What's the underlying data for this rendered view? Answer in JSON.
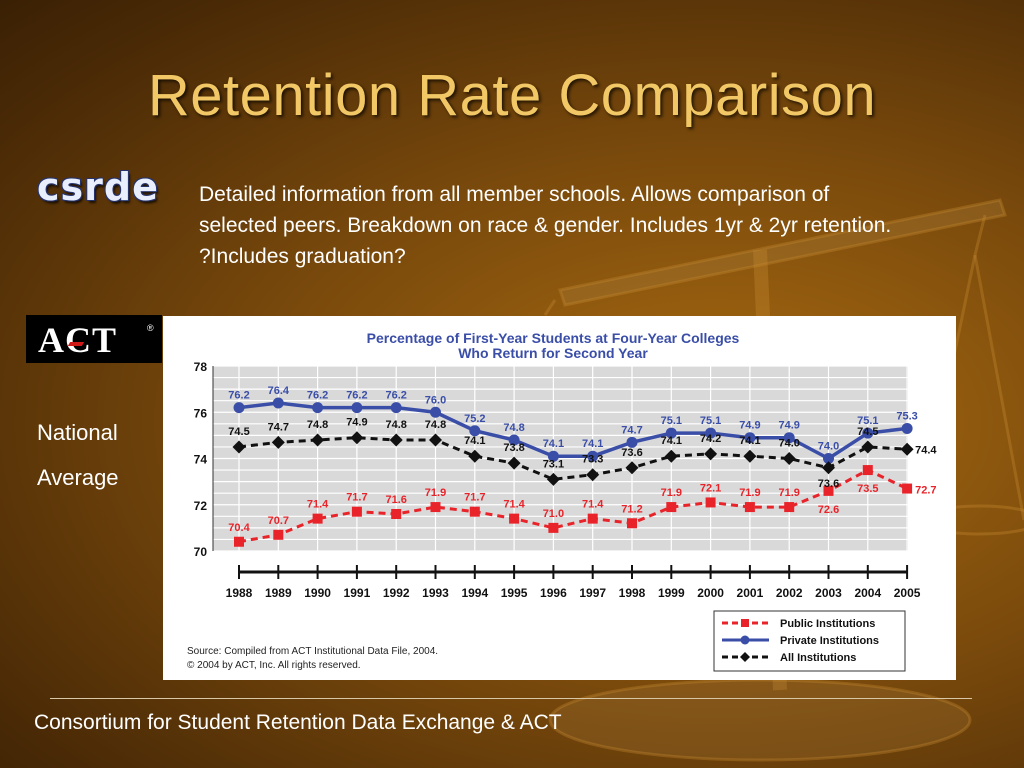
{
  "slide": {
    "title": "Retention Rate Comparison",
    "csrde_logo": "csrde",
    "description": "Detailed information from all member schools.  Allows comparison of selected peers.  Breakdown on race & gender.  Includes 1yr & 2yr retention.  ?Includes graduation?",
    "act_logo": "ACT",
    "act_registered": "®",
    "national": "National",
    "average": "Average",
    "footer": "Consortium for Student Retention Data Exchange & ACT"
  },
  "chart_data": {
    "type": "line",
    "title_line1": "Percentage of First-Year Students at Four-Year Colleges",
    "title_line2": "Who Return for Second Year",
    "categories": [
      "1988",
      "1989",
      "1990",
      "1991",
      "1992",
      "1993",
      "1994",
      "1995",
      "1996",
      "1997",
      "1998",
      "1999",
      "2000",
      "2001",
      "2002",
      "2003",
      "2004",
      "2005"
    ],
    "ylim": [
      70,
      78
    ],
    "yticks": [
      70,
      72,
      74,
      76,
      78
    ],
    "grid": true,
    "legend_position": "bottom-right",
    "series": [
      {
        "name": "Public Institutions",
        "color": "#e8242a",
        "marker": "square",
        "dashed": true,
        "values": [
          70.4,
          70.7,
          71.4,
          71.7,
          71.6,
          71.9,
          71.7,
          71.4,
          71.0,
          71.4,
          71.2,
          71.9,
          72.1,
          71.9,
          71.9,
          72.6,
          73.5,
          72.7
        ]
      },
      {
        "name": "Private Institutions",
        "color": "#3a4ea8",
        "marker": "circle",
        "dashed": false,
        "values": [
          76.2,
          76.4,
          76.2,
          76.2,
          76.2,
          76.0,
          75.2,
          74.8,
          74.1,
          74.1,
          74.7,
          75.1,
          75.1,
          74.9,
          74.9,
          74.0,
          75.1,
          75.3
        ]
      },
      {
        "name": "All Institutions",
        "color": "#111111",
        "marker": "diamond",
        "dashed": true,
        "values": [
          74.5,
          74.7,
          74.8,
          74.9,
          74.8,
          74.8,
          74.1,
          73.8,
          73.1,
          73.3,
          73.6,
          74.1,
          74.2,
          74.1,
          74.0,
          73.6,
          74.5,
          74.4
        ]
      }
    ],
    "source_line1": "Source: Compiled from ACT Institutional Data File, 2004.",
    "source_line2": "© 2004 by ACT, Inc. All rights reserved."
  }
}
